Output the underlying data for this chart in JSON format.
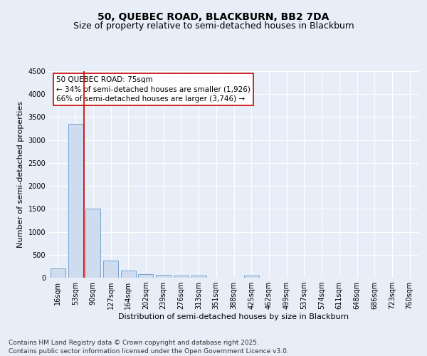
{
  "title1": "50, QUEBEC ROAD, BLACKBURN, BB2 7DA",
  "title2": "Size of property relative to semi-detached houses in Blackburn",
  "xlabel": "Distribution of semi-detached houses by size in Blackburn",
  "ylabel": "Number of semi-detached properties",
  "categories": [
    "16sqm",
    "53sqm",
    "90sqm",
    "127sqm",
    "164sqm",
    "202sqm",
    "239sqm",
    "276sqm",
    "313sqm",
    "351sqm",
    "388sqm",
    "425sqm",
    "462sqm",
    "499sqm",
    "537sqm",
    "574sqm",
    "611sqm",
    "648sqm",
    "686sqm",
    "723sqm",
    "760sqm"
  ],
  "values": [
    200,
    3350,
    1500,
    380,
    150,
    80,
    60,
    50,
    40,
    0,
    0,
    50,
    0,
    0,
    0,
    0,
    0,
    0,
    0,
    0,
    0
  ],
  "bar_color": "#cfdcef",
  "bar_edge_color": "#6699cc",
  "vline_color": "#cc0000",
  "annotation_text": "50 QUEBEC ROAD: 75sqm\n← 34% of semi-detached houses are smaller (1,926)\n66% of semi-detached houses are larger (3,746) →",
  "annotation_box_facecolor": "white",
  "annotation_box_edgecolor": "#cc0000",
  "ylim": [
    0,
    4500
  ],
  "yticks": [
    0,
    500,
    1000,
    1500,
    2000,
    2500,
    3000,
    3500,
    4000,
    4500
  ],
  "footnote": "Contains HM Land Registry data © Crown copyright and database right 2025.\nContains public sector information licensed under the Open Government Licence v3.0.",
  "bg_color": "#e8eef8",
  "plot_bg": "#e8eef8",
  "grid_color": "#ffffff",
  "title_fontsize": 10,
  "subtitle_fontsize": 9,
  "axis_label_fontsize": 8,
  "tick_fontsize": 7,
  "footnote_fontsize": 6.5
}
